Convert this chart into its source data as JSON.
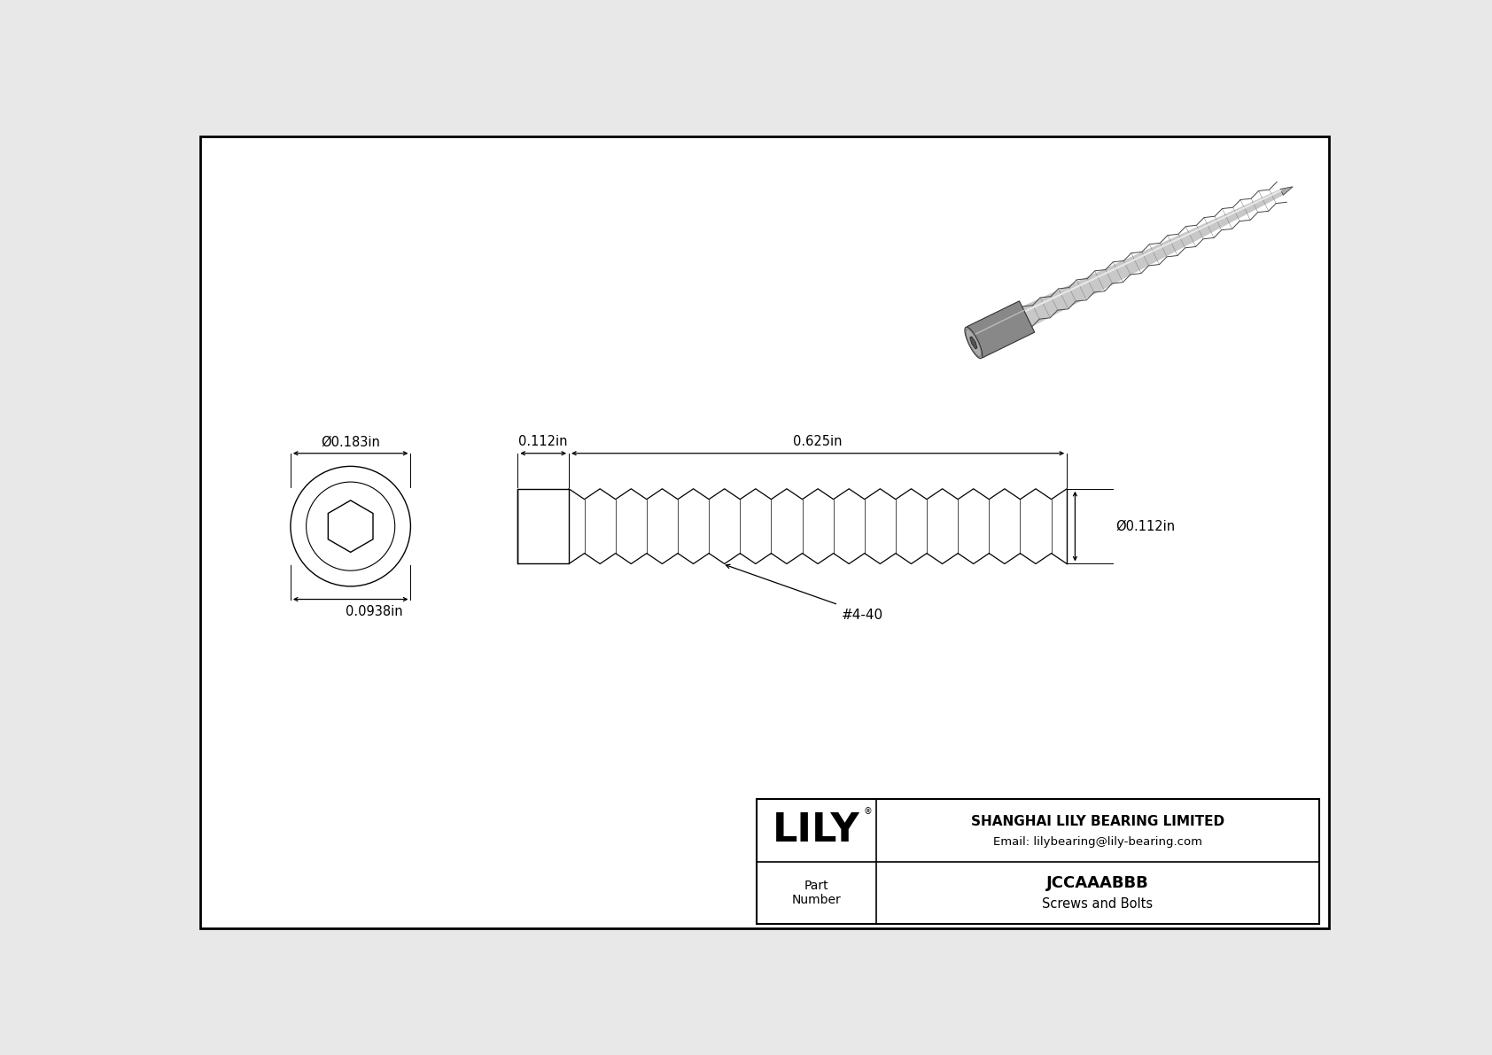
{
  "bg_color": "#e8e8e8",
  "drawing_bg": "#ffffff",
  "border_color": "#000000",
  "line_color": "#000000",
  "title_company": "SHANGHAI LILY BEARING LIMITED",
  "title_email": "Email: lilybearing@lily-bearing.com",
  "part_number": "JCCAAABBB",
  "part_category": "Screws and Bolts",
  "part_label": "Part\nNumber",
  "dim_head_diameter": "Ø0.183in",
  "dim_hex_diameter": "0.0938in",
  "dim_head_length": "0.112in",
  "dim_shank_length": "0.625in",
  "dim_shank_diameter": "Ø0.112in",
  "thread_label": "#4-40",
  "font_size_dim": 10.5,
  "font_size_logo": 32,
  "font_size_company": 11,
  "font_size_part": 13,
  "font_size_part_label": 10,
  "font_size_thread": 11
}
